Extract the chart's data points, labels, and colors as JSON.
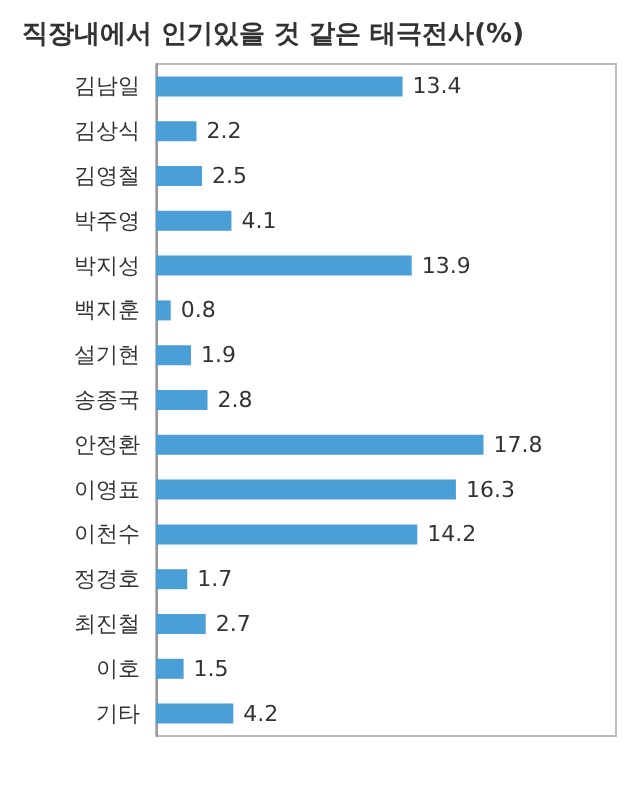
{
  "chart_data": {
    "type": "bar",
    "orientation": "horizontal",
    "title": "직장내에서 인기있을 것 같은 태극전사(%)",
    "categories": [
      "김남일",
      "김상식",
      "김영철",
      "박주영",
      "박지성",
      "백지훈",
      "설기현",
      "송종국",
      "안정환",
      "이영표",
      "이천수",
      "정경호",
      "최진철",
      "이호",
      "기타"
    ],
    "values": [
      13.4,
      2.2,
      2.5,
      4.1,
      13.9,
      0.8,
      1.9,
      2.8,
      17.8,
      16.3,
      14.2,
      1.7,
      2.7,
      1.5,
      4.2
    ],
    "color": "#4a9fd6",
    "data_labels": true,
    "grid": false
  }
}
